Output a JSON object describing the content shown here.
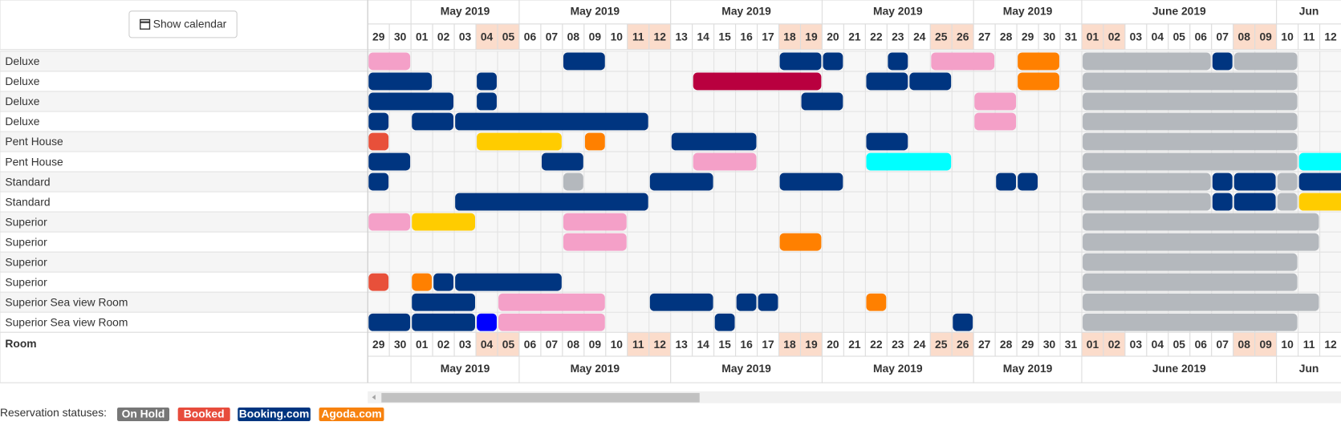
{
  "button": "Show calendar",
  "header": {
    "months": [
      "May 2019",
      "May 2019",
      "May 2019",
      "May 2019",
      "May 2019",
      "June 2019",
      "Jun"
    ],
    "days": [
      "29",
      "30",
      "01",
      "02",
      "03",
      "04",
      "05",
      "06",
      "07",
      "08",
      "09",
      "10",
      "11",
      "12",
      "13",
      "14",
      "15",
      "16",
      "17",
      "18",
      "19",
      "20",
      "21",
      "22",
      "23",
      "24",
      "25",
      "26",
      "27",
      "28",
      "29",
      "30",
      "31",
      "01",
      "02",
      "03",
      "04",
      "05",
      "06",
      "07",
      "08",
      "09",
      "10",
      "11",
      "12"
    ]
  },
  "rooms": [
    "Deluxe",
    "Deluxe",
    "Deluxe",
    "Deluxe",
    "Pent House",
    "Pent House",
    "Standard",
    "Standard",
    "Superior",
    "Superior",
    "Superior",
    "Superior",
    "Superior Sea view Room",
    "Superior Sea view Room"
  ],
  "footer_label": "Room",
  "legend": {
    "title": "Reservation statuses:",
    "statuses": [
      {
        "label": "On Hold",
        "color": "#777777"
      },
      {
        "label": "Booked",
        "color": "#e74c3c"
      },
      {
        "label": "Booking.com",
        "color": "#003580"
      },
      {
        "label": "Agoda.com",
        "color": "#f7820f"
      }
    ]
  }
}
